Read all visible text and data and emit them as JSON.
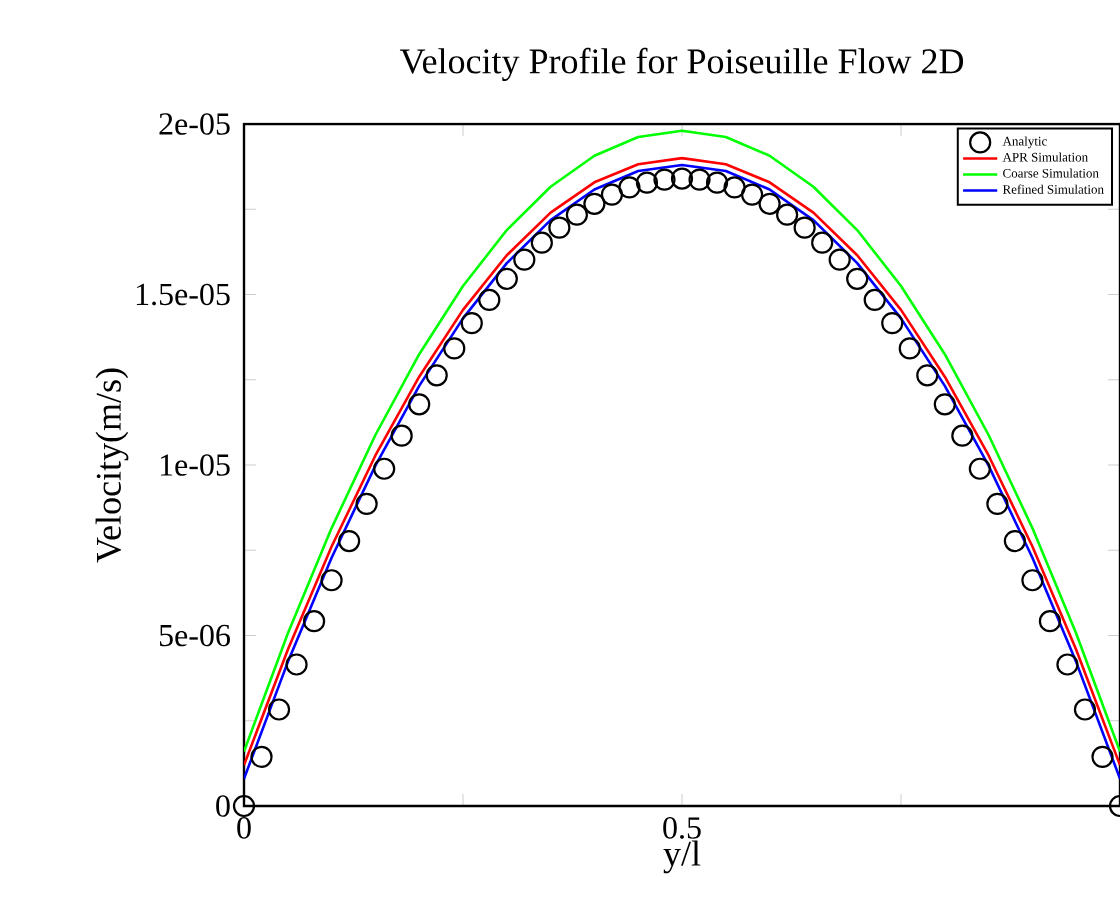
{
  "chart_data": {
    "type": "line",
    "title": "Velocity Profile for Poiseuille Flow 2D",
    "xlabel": "y/l",
    "ylabel": "Velocity(m/s)",
    "xlim": [
      0,
      1
    ],
    "ylim": [
      0,
      2e-05
    ],
    "xticks": [
      0,
      {
        "value": 0.25,
        "label": null
      },
      0.5,
      {
        "value": 0.75,
        "label": null
      },
      {
        "value": 1,
        "label": null
      }
    ],
    "yticks": [
      0,
      {
        "value": 2.5e-06,
        "label": null
      },
      {
        "value": 5e-06,
        "label": "5e-06"
      },
      {
        "value": 7.5e-06,
        "label": null
      },
      {
        "value": 1e-05,
        "label": "1e-05"
      },
      {
        "value": 1.25e-05,
        "label": null
      },
      {
        "value": 1.5e-05,
        "label": "1.5e-05"
      },
      {
        "value": 1.75e-05,
        "label": null
      },
      {
        "value": 2e-05,
        "label": "2e-05"
      }
    ],
    "legend": "top right",
    "grid": false,
    "series": [
      {
        "name": "Analytic",
        "type": "scatter",
        "marker": "circle",
        "color": "#000000",
        "x": [
          0,
          0.02,
          0.04,
          0.06,
          0.08,
          0.1,
          0.12,
          0.14,
          0.16,
          0.18,
          0.2,
          0.22,
          0.24,
          0.26,
          0.28,
          0.3,
          0.32,
          0.34,
          0.36,
          0.38,
          0.4,
          0.42,
          0.44,
          0.46,
          0.48,
          0.5,
          0.52,
          0.54,
          0.56,
          0.58,
          0.6,
          0.62,
          0.64,
          0.66,
          0.68,
          0.7,
          0.72,
          0.74,
          0.76,
          0.78,
          0.8,
          0.82,
          0.84,
          0.86,
          0.88,
          0.9,
          0.92,
          0.94,
          0.96,
          0.98,
          1
        ],
        "values": [
          0,
          1.44e-06,
          2.83e-06,
          4.15e-06,
          5.42e-06,
          6.62e-06,
          7.77e-06,
          8.86e-06,
          9.89e-06,
          1.086e-05,
          1.178e-05,
          1.263e-05,
          1.342e-05,
          1.416e-05,
          1.484e-05,
          1.546e-05,
          1.602e-05,
          1.652e-05,
          1.696e-05,
          1.734e-05,
          1.766e-05,
          1.793e-05,
          1.814e-05,
          1.828e-05,
          1.837e-05,
          1.84e-05,
          1.837e-05,
          1.828e-05,
          1.814e-05,
          1.793e-05,
          1.766e-05,
          1.734e-05,
          1.696e-05,
          1.652e-05,
          1.602e-05,
          1.546e-05,
          1.484e-05,
          1.416e-05,
          1.342e-05,
          1.263e-05,
          1.178e-05,
          1.086e-05,
          9.89e-06,
          8.86e-06,
          7.77e-06,
          6.62e-06,
          5.42e-06,
          4.15e-06,
          2.83e-06,
          1.44e-06,
          0
        ]
      },
      {
        "name": "APR Simulation",
        "color": "#ff0000",
        "x": [
          0,
          0.05,
          0.1,
          0.15,
          0.2,
          0.25,
          0.3,
          0.35,
          0.4,
          0.45,
          0.5,
          0.55,
          0.6,
          0.65,
          0.7,
          0.75,
          0.8,
          0.85,
          0.9,
          0.95,
          1
        ],
        "values": [
          1.2e-06,
          4.58e-06,
          7.61e-06,
          1.028e-05,
          1.259e-05,
          1.455e-05,
          1.615e-05,
          1.74e-05,
          1.829e-05,
          1.882e-05,
          1.9e-05,
          1.882e-05,
          1.829e-05,
          1.74e-05,
          1.615e-05,
          1.455e-05,
          1.259e-05,
          1.028e-05,
          7.61e-06,
          4.58e-06,
          1.2e-06
        ]
      },
      {
        "name": "Coarse Simulation",
        "color": "#00ff00",
        "x": [
          0,
          0.05,
          0.1,
          0.15,
          0.2,
          0.25,
          0.3,
          0.35,
          0.4,
          0.45,
          0.5,
          0.55,
          0.6,
          0.65,
          0.7,
          0.75,
          0.8,
          0.85,
          0.9,
          0.95,
          1
        ],
        "values": [
          1.6e-06,
          5.06e-06,
          8.15e-06,
          1.088e-05,
          1.325e-05,
          1.525e-05,
          1.689e-05,
          1.816e-05,
          1.907e-05,
          1.962e-05,
          1.98e-05,
          1.962e-05,
          1.907e-05,
          1.816e-05,
          1.689e-05,
          1.525e-05,
          1.325e-05,
          1.088e-05,
          8.15e-06,
          5.06e-06,
          1.6e-06
        ]
      },
      {
        "name": "Refined Simulation",
        "color": "#0000ff",
        "x": [
          0,
          0.05,
          0.1,
          0.15,
          0.2,
          0.25,
          0.3,
          0.35,
          0.4,
          0.45,
          0.5,
          0.55,
          0.6,
          0.65,
          0.7,
          0.75,
          0.8,
          0.85,
          0.9,
          0.95,
          1
        ],
        "values": [
          8e-07,
          4.22e-06,
          7.28e-06,
          9.98e-06,
          1.232e-05,
          1.43e-05,
          1.592e-05,
          1.718e-05,
          1.808e-05,
          1.862e-05,
          1.88e-05,
          1.862e-05,
          1.808e-05,
          1.718e-05,
          1.592e-05,
          1.43e-05,
          1.232e-05,
          9.98e-06,
          7.28e-06,
          4.22e-06,
          8e-07
        ]
      }
    ]
  }
}
